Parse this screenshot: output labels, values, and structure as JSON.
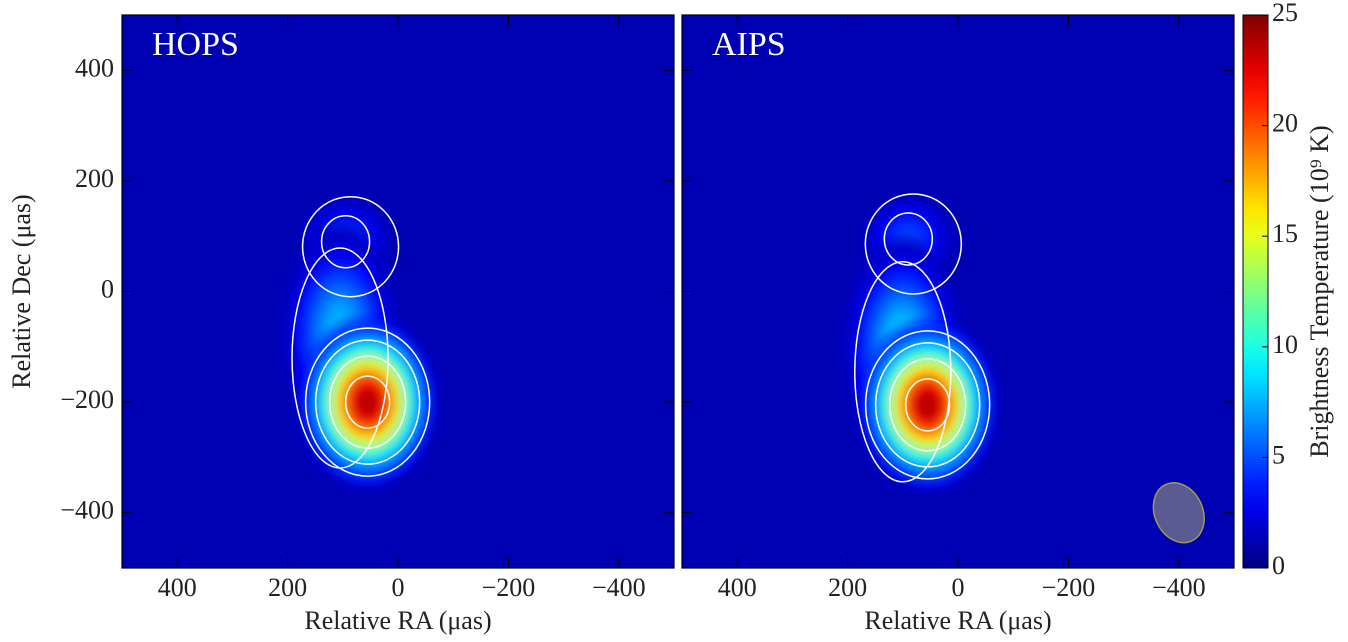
{
  "chart_data": [
    {
      "type": "heatmap",
      "title": "HOPS",
      "xlabel": "Relative RA (μas)",
      "ylabel": "Relative Dec (μas)",
      "xlim": [
        500,
        -500
      ],
      "ylim": [
        -500,
        500
      ],
      "xticks": [
        400,
        200,
        0,
        {
          "value": -200,
          "label": "−200"
        },
        {
          "value": -400,
          "label": "−400"
        }
      ],
      "yticks": [
        {
          "value": -400,
          "label": "−400"
        },
        {
          "value": -200,
          "label": "−200"
        },
        0,
        200,
        400
      ],
      "components": {
        "x": [
          55,
          105,
          95
        ],
        "y": [
          -200,
          -75,
          90
        ],
        "values": [
          25,
          8,
          5
        ]
      }
    },
    {
      "type": "heatmap",
      "title": "AIPS",
      "xlabel": "Relative RA (μas)",
      "xlim": [
        500,
        -500
      ],
      "ylim": [
        -500,
        500
      ],
      "xticks": [
        400,
        200,
        0,
        {
          "value": -200,
          "label": "−200"
        },
        {
          "value": -400,
          "label": "−400"
        }
      ],
      "yticks": [
        -400,
        -200,
        0,
        200,
        400
      ],
      "components": {
        "x": [
          55,
          100,
          90
        ],
        "y": [
          -205,
          -100,
          95
        ],
        "values": [
          25,
          9,
          5
        ]
      }
    },
    {
      "type": "colorbar",
      "label": "Brightness Temperature (10⁹ K)",
      "colormap": "jet",
      "ylim": [
        0,
        25
      ],
      "yticks": [
        0,
        5,
        10,
        15,
        20,
        25
      ]
    }
  ]
}
